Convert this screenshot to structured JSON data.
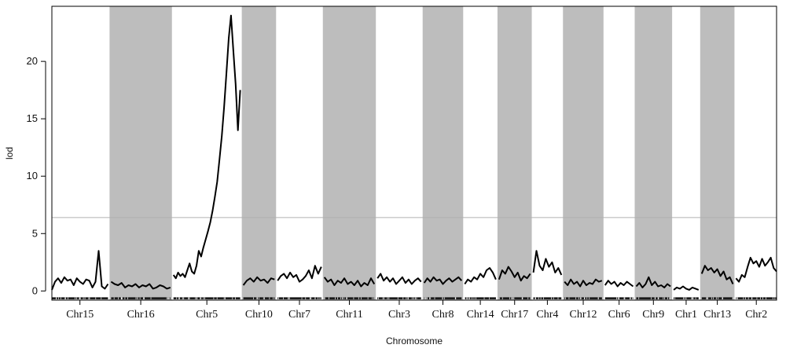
{
  "chart_data": {
    "type": "line",
    "title": "",
    "xlabel": "Chromosome",
    "ylabel": "lod",
    "ylim": [
      -0.8,
      24.8
    ],
    "yticks": [
      0,
      5,
      10,
      15,
      20
    ],
    "threshold": 6.4,
    "band_color": "#bdbdbd",
    "line_color": "#000000",
    "threshold_color": "#b0b0b0",
    "chromosomes": [
      {
        "name": "Chr15",
        "shaded": false,
        "x_start": 0.0,
        "x_end": 0.9,
        "values": [
          0.1,
          0.8,
          1.1,
          0.7,
          1.2,
          0.9,
          1.0,
          0.5,
          1.1,
          0.8,
          0.6,
          1.0,
          0.9,
          0.3,
          0.8,
          3.5,
          0.4,
          0.2,
          0.6
        ]
      },
      {
        "name": "Chr16",
        "shaded": true,
        "x_start": 0.95,
        "x_end": 1.9,
        "values": [
          0.8,
          0.6,
          0.5,
          0.7,
          0.3,
          0.5,
          0.4,
          0.6,
          0.3,
          0.5,
          0.4,
          0.6,
          0.2,
          0.3,
          0.5,
          0.4,
          0.2,
          0.3
        ]
      },
      {
        "name": "Chr5",
        "shaded": false,
        "x_start": 1.95,
        "x_end": 3.02,
        "values": [
          1.4,
          1.1,
          1.6,
          1.3,
          1.5,
          1.2,
          1.8,
          2.4,
          1.7,
          1.5,
          2.2,
          3.5,
          3.0,
          3.8,
          4.5,
          5.2,
          6.0,
          7.0,
          8.2,
          9.5,
          11.5,
          13.5,
          16.0,
          19.0,
          22.0,
          24.0,
          21.0,
          18.0,
          14.0,
          17.5
        ]
      },
      {
        "name": "Chr10",
        "shaded": true,
        "x_start": 3.07,
        "x_end": 3.57,
        "values": [
          0.5,
          0.9,
          1.1,
          0.8,
          1.2,
          0.9,
          1.0,
          0.7,
          1.1,
          1.0
        ]
      },
      {
        "name": "Chr7",
        "shaded": false,
        "x_start": 3.62,
        "x_end": 4.32,
        "values": [
          0.9,
          1.3,
          1.5,
          1.1,
          1.6,
          1.2,
          1.4,
          0.8,
          1.0,
          1.3,
          1.8,
          1.1,
          2.2,
          1.5,
          2.1
        ]
      },
      {
        "name": "Chr11",
        "shaded": true,
        "x_start": 4.37,
        "x_end": 5.17,
        "values": [
          1.2,
          0.8,
          1.0,
          0.5,
          0.9,
          0.7,
          1.1,
          0.6,
          0.8,
          0.5,
          0.9,
          0.4,
          0.7,
          0.5,
          1.1,
          0.6
        ]
      },
      {
        "name": "Chr3",
        "shaded": false,
        "x_start": 5.22,
        "x_end": 5.92,
        "values": [
          1.1,
          1.5,
          0.9,
          1.2,
          0.8,
          1.1,
          0.6,
          0.9,
          1.2,
          0.7,
          1.0,
          0.6,
          0.9,
          1.1,
          0.8
        ]
      },
      {
        "name": "Chr8",
        "shaded": true,
        "x_start": 5.97,
        "x_end": 6.57,
        "values": [
          0.7,
          1.1,
          0.8,
          1.2,
          0.9,
          1.0,
          0.6,
          0.9,
          1.1,
          0.8,
          1.0,
          1.2,
          0.9
        ]
      },
      {
        "name": "Chr14",
        "shaded": false,
        "x_start": 6.62,
        "x_end": 7.12,
        "values": [
          0.6,
          1.0,
          0.8,
          1.2,
          1.0,
          1.5,
          1.2,
          1.8,
          2.0,
          1.6,
          1.0
        ]
      },
      {
        "name": "Chr17",
        "shaded": true,
        "x_start": 7.17,
        "x_end": 7.67,
        "values": [
          1.0,
          1.8,
          1.5,
          2.1,
          1.7,
          1.2,
          1.6,
          0.9,
          1.3,
          1.1,
          1.5
        ]
      },
      {
        "name": "Chr4",
        "shaded": false,
        "x_start": 7.72,
        "x_end": 8.17,
        "values": [
          1.6,
          3.5,
          2.2,
          1.8,
          2.8,
          2.1,
          2.5,
          1.6,
          2.0,
          1.4
        ]
      },
      {
        "name": "Chr12",
        "shaded": true,
        "x_start": 8.22,
        "x_end": 8.82,
        "values": [
          0.8,
          0.5,
          1.0,
          0.6,
          0.8,
          0.4,
          0.9,
          0.5,
          0.7,
          0.6,
          1.0,
          0.8,
          0.9
        ]
      },
      {
        "name": "Chr6",
        "shaded": false,
        "x_start": 8.87,
        "x_end": 9.32,
        "values": [
          0.5,
          0.9,
          0.6,
          0.8,
          0.4,
          0.7,
          0.5,
          0.8,
          0.6,
          0.4
        ]
      },
      {
        "name": "Chr9",
        "shaded": true,
        "x_start": 9.37,
        "x_end": 9.92,
        "values": [
          0.4,
          0.7,
          0.3,
          0.6,
          1.2,
          0.5,
          0.8,
          0.4,
          0.5,
          0.3,
          0.6,
          0.4
        ]
      },
      {
        "name": "Chr1",
        "shaded": false,
        "x_start": 9.97,
        "x_end": 10.37,
        "values": [
          0.1,
          0.3,
          0.2,
          0.4,
          0.2,
          0.1,
          0.3,
          0.2,
          0.1
        ]
      },
      {
        "name": "Chr13",
        "shaded": true,
        "x_start": 10.42,
        "x_end": 10.92,
        "values": [
          1.5,
          2.2,
          1.8,
          2.0,
          1.6,
          1.9,
          1.3,
          1.7,
          1.0,
          1.2,
          0.6
        ]
      },
      {
        "name": "Chr2",
        "shaded": false,
        "x_start": 10.97,
        "x_end": 11.62,
        "values": [
          1.1,
          0.8,
          1.4,
          1.2,
          2.1,
          2.9,
          2.4,
          2.6,
          2.1,
          2.8,
          2.2,
          2.5,
          2.9,
          2.0,
          1.7
        ]
      }
    ],
    "x_range": [
      0,
      11.62
    ]
  }
}
